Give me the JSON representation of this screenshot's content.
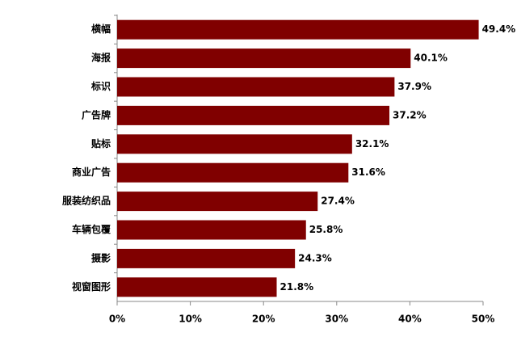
{
  "chart_data": {
    "type": "bar",
    "horizontal": true,
    "categories": [
      "横幅",
      "海报",
      "标识",
      "广告牌",
      "贴标",
      "商业广告",
      "服装纺织品",
      "车辆包覆",
      "摄影",
      "视窗图形"
    ],
    "values": [
      49.4,
      40.1,
      37.9,
      37.2,
      32.1,
      31.6,
      27.4,
      25.8,
      24.3,
      21.8
    ],
    "value_labels": [
      "49.4%",
      "40.1%",
      "37.9%",
      "37.2%",
      "32.1%",
      "31.6%",
      "27.4%",
      "25.8%",
      "24.3%",
      "21.8%"
    ],
    "color": "#800000",
    "xlim": [
      0,
      50
    ],
    "xticks": [
      {
        "value": 0,
        "label": "0%"
      },
      {
        "value": 10,
        "label": "10%"
      },
      {
        "value": 20,
        "label": "20%"
      },
      {
        "value": 30,
        "label": "30%"
      },
      {
        "value": 40,
        "label": "40%"
      },
      {
        "value": 50,
        "label": "50%"
      }
    ]
  }
}
